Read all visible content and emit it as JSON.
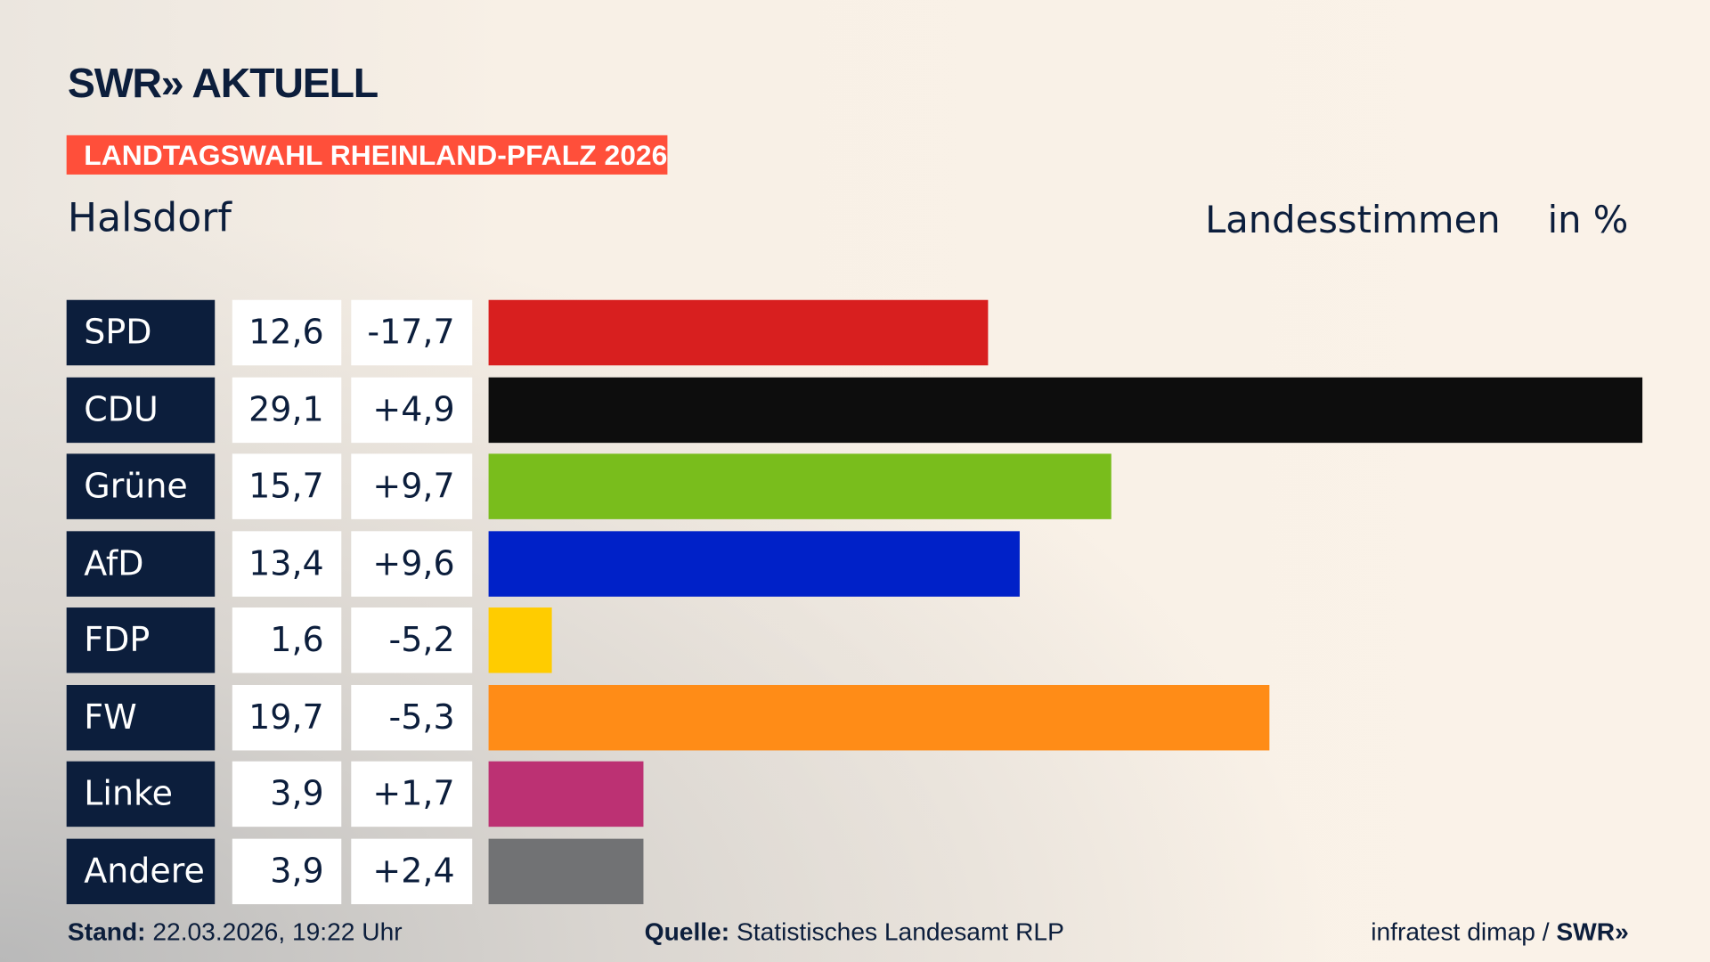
{
  "header": {
    "logo": "SWR» AKTUELL",
    "tag": "LANDTAGSWAHL RHEINLAND-PFALZ 2026",
    "region": "Halsdorf",
    "measure": "Landesstimmen",
    "unit": "in %"
  },
  "chart_data": {
    "type": "bar",
    "orientation": "horizontal",
    "xlim": [
      0,
      29.1
    ],
    "categories": [
      "SPD",
      "CDU",
      "Grüne",
      "AfD",
      "FDP",
      "FW",
      "Linke",
      "Andere"
    ],
    "values": [
      12.6,
      29.1,
      15.7,
      13.4,
      1.6,
      19.7,
      3.9,
      3.9
    ],
    "value_labels": [
      "12,6",
      "29,1",
      "15,7",
      "13,4",
      "1,6",
      "19,7",
      "3,9",
      "3,9"
    ],
    "diff_labels": [
      "-17,7",
      "+4,9",
      "+9,7",
      "+9,6",
      "-5,2",
      "-5,3",
      "+1,7",
      "+2,4"
    ],
    "colors": [
      "#d81f1f",
      "#0d0d0d",
      "#79bd1c",
      "#0021c8",
      "#ffcc00",
      "#ff8c17",
      "#bc3173",
      "#717274"
    ]
  },
  "footer": {
    "stand_label": "Stand:",
    "stand": "22.03.2026, 19:22 Uhr",
    "quelle_label": "Quelle:",
    "quelle": "Statistisches Landesamt RLP",
    "credit": "infratest dimap / ",
    "credit_logo": "SWR»"
  }
}
